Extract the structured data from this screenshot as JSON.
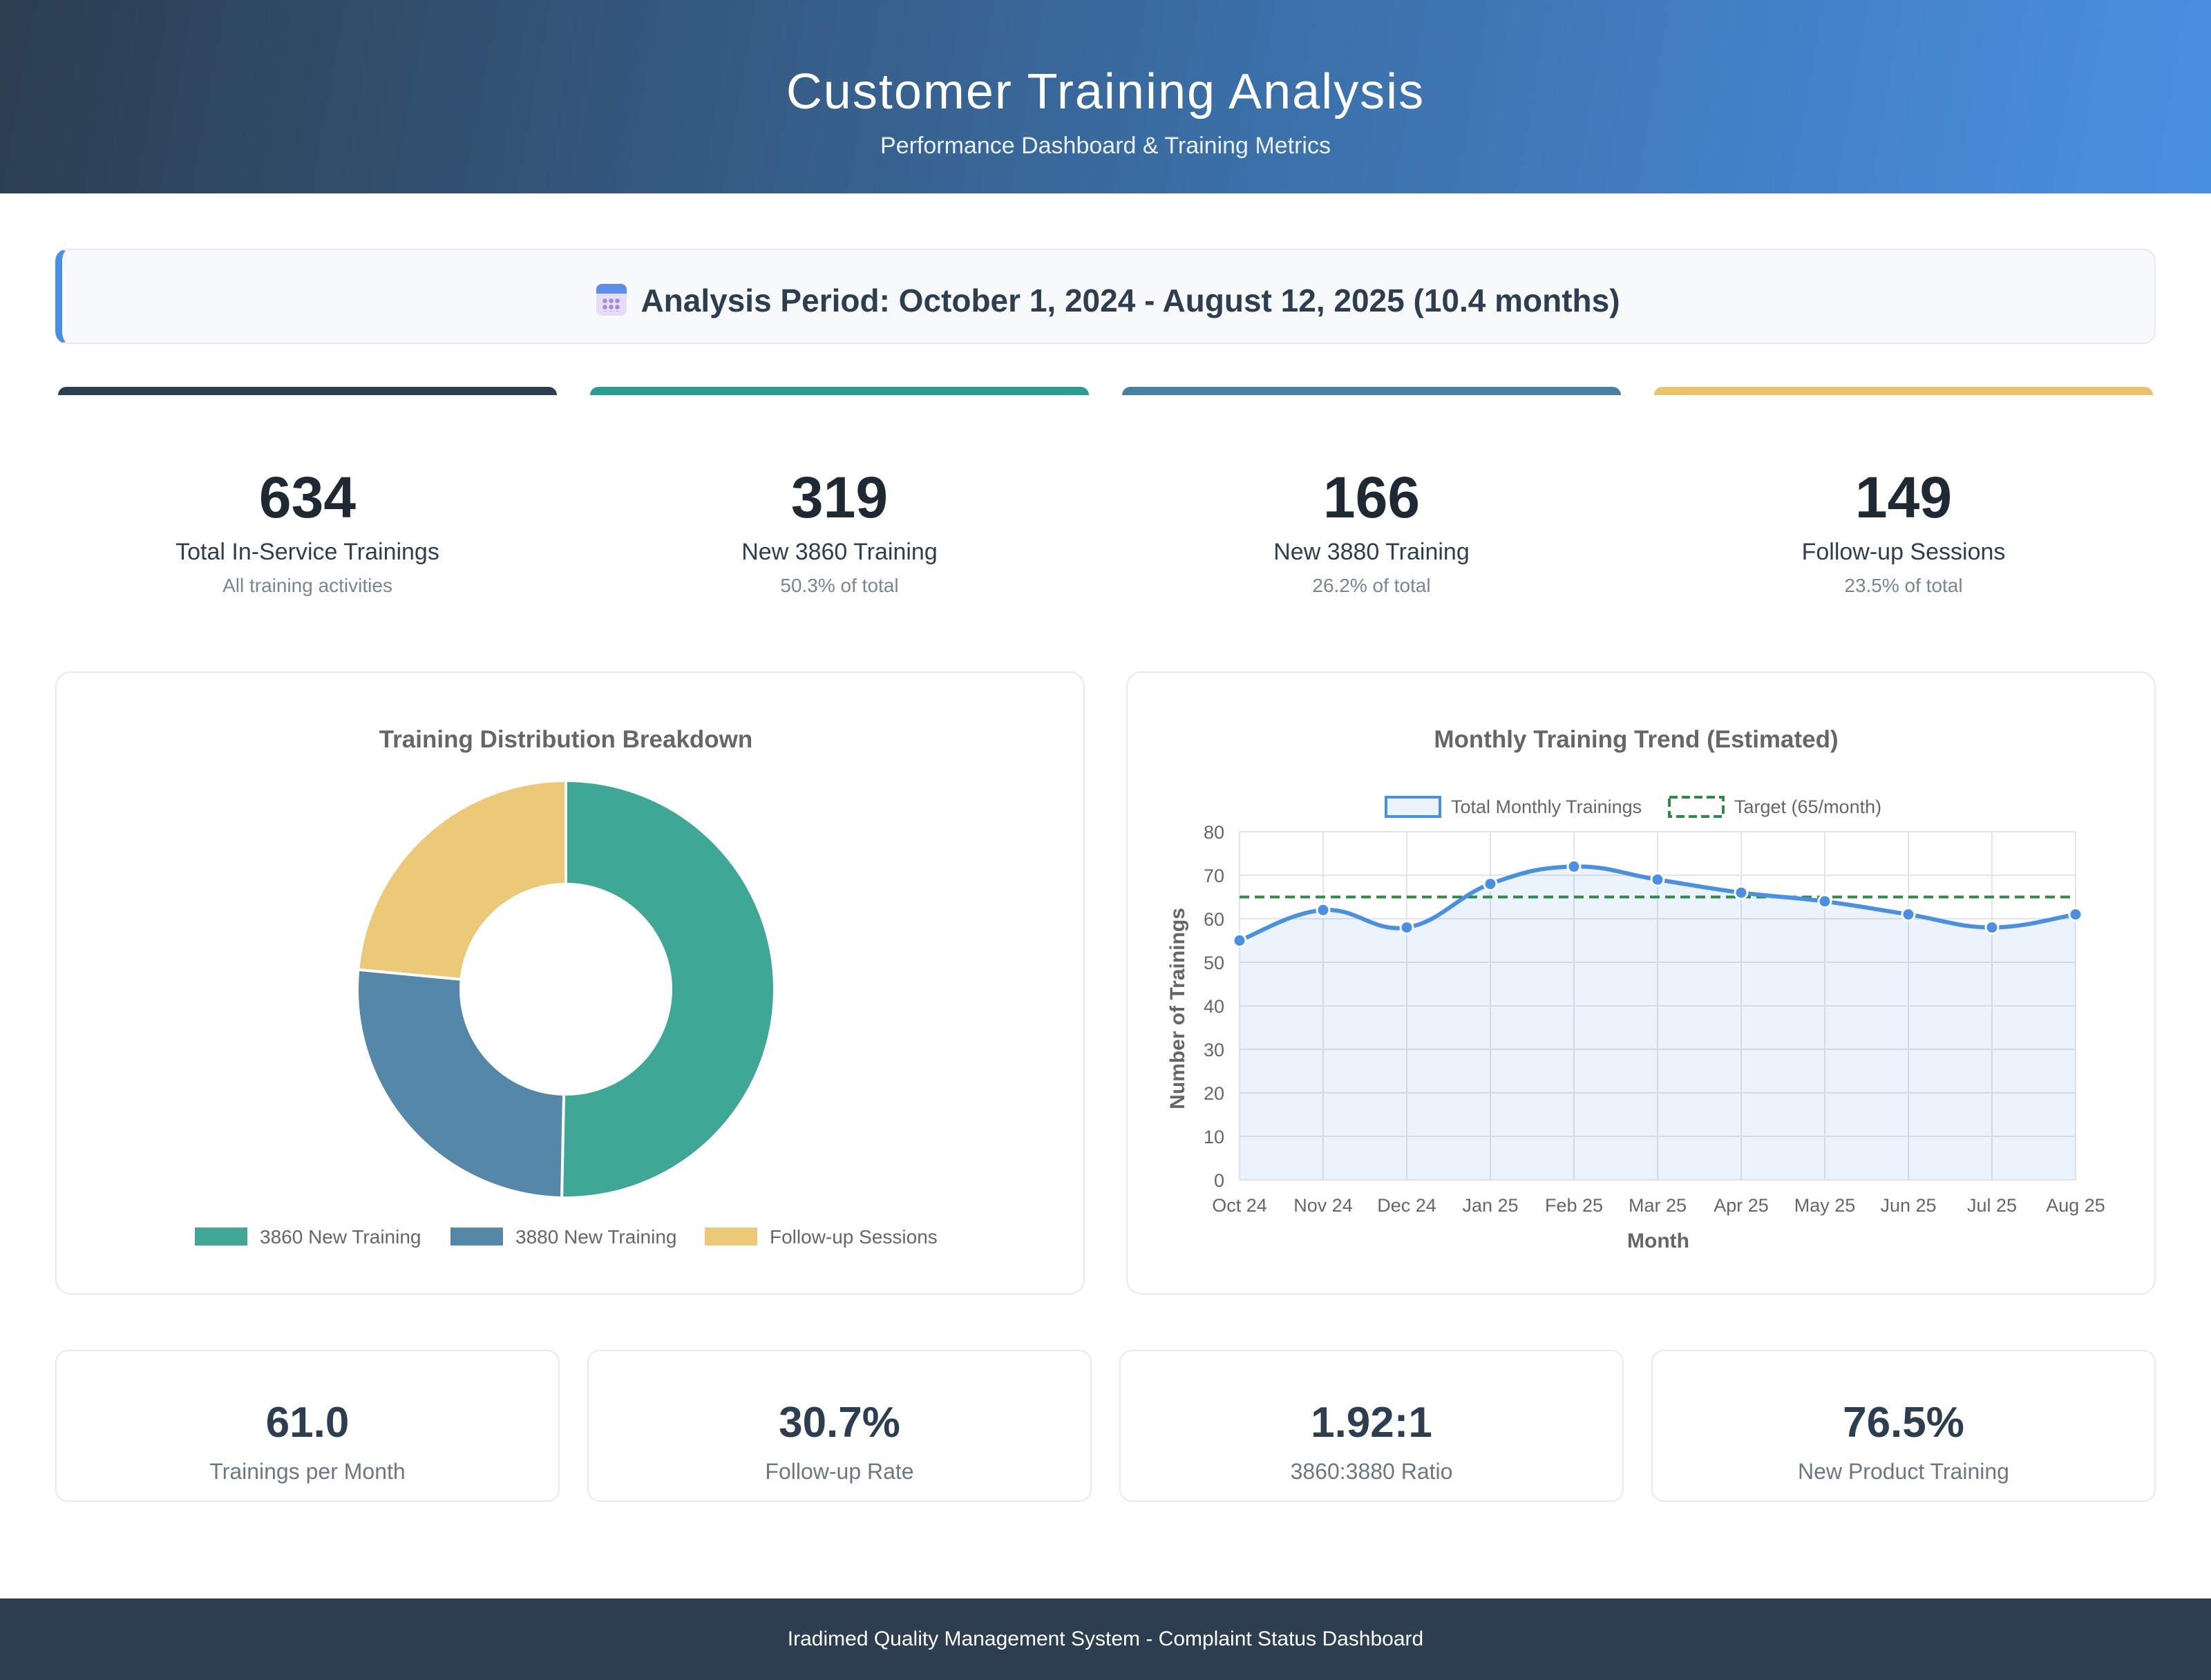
{
  "header": {
    "title": "Customer Training Analysis",
    "subtitle": "Performance Dashboard & Training Metrics"
  },
  "period": {
    "icon": "calendar-icon",
    "text": "Analysis Period: October 1, 2024 - August 12, 2025 (10.4 months)"
  },
  "stats": [
    {
      "value": "634",
      "label": "Total In-Service Trainings",
      "sub": "All training activities",
      "accent": "#2c3e50"
    },
    {
      "value": "319",
      "label": "New 3860 Training",
      "sub": "50.3% of total",
      "accent": "#3fa796"
    },
    {
      "value": "166",
      "label": "New 3880 Training",
      "sub": "26.2% of total",
      "accent": "#4f7fa3"
    },
    {
      "value": "149",
      "label": "Follow-up Sessions",
      "sub": "23.5% of total",
      "accent": "#ebc976"
    }
  ],
  "metrics": [
    {
      "value": "61.0",
      "label": "Trainings per Month"
    },
    {
      "value": "30.7%",
      "label": "Follow-up Rate"
    },
    {
      "value": "1.92:1",
      "label": "3860:3880 Ratio"
    },
    {
      "value": "76.5%",
      "label": "New Product Training"
    }
  ],
  "footer": {
    "text": "Iradimed Quality Management System - Complaint Status Dashboard"
  },
  "chart_data": [
    {
      "type": "pie",
      "title": "Training Distribution Breakdown",
      "categories": [
        "3860 New Training",
        "3880 New Training",
        "Follow-up Sessions"
      ],
      "values": [
        319,
        166,
        149
      ],
      "colors": [
        "#3fa796",
        "#5587a8",
        "#ebc976"
      ],
      "legend": "bottom"
    },
    {
      "type": "line",
      "title": "Monthly Training Trend (Estimated)",
      "xlabel": "Month",
      "ylabel": "Number of Trainings",
      "categories": [
        "Oct 24",
        "Nov 24",
        "Dec 24",
        "Jan 25",
        "Feb 25",
        "Mar 25",
        "Apr 25",
        "May 25",
        "Jun 25",
        "Jul 25",
        "Aug 25"
      ],
      "series": [
        {
          "name": "Total Monthly Trainings",
          "values": [
            55,
            62,
            58,
            68,
            72,
            69,
            66,
            64,
            61,
            58,
            61
          ],
          "color": "#4a90e2"
        },
        {
          "name": "Target (65/month)",
          "values": [
            65,
            65,
            65,
            65,
            65,
            65,
            65,
            65,
            65,
            65,
            65
          ],
          "color": "#2e8b47"
        }
      ],
      "ylim": [
        0,
        80
      ],
      "yticks": [
        "0",
        "10",
        "20",
        "30",
        "40",
        "50",
        "60",
        "70",
        "80"
      ],
      "grid": true,
      "legend": "top"
    }
  ]
}
